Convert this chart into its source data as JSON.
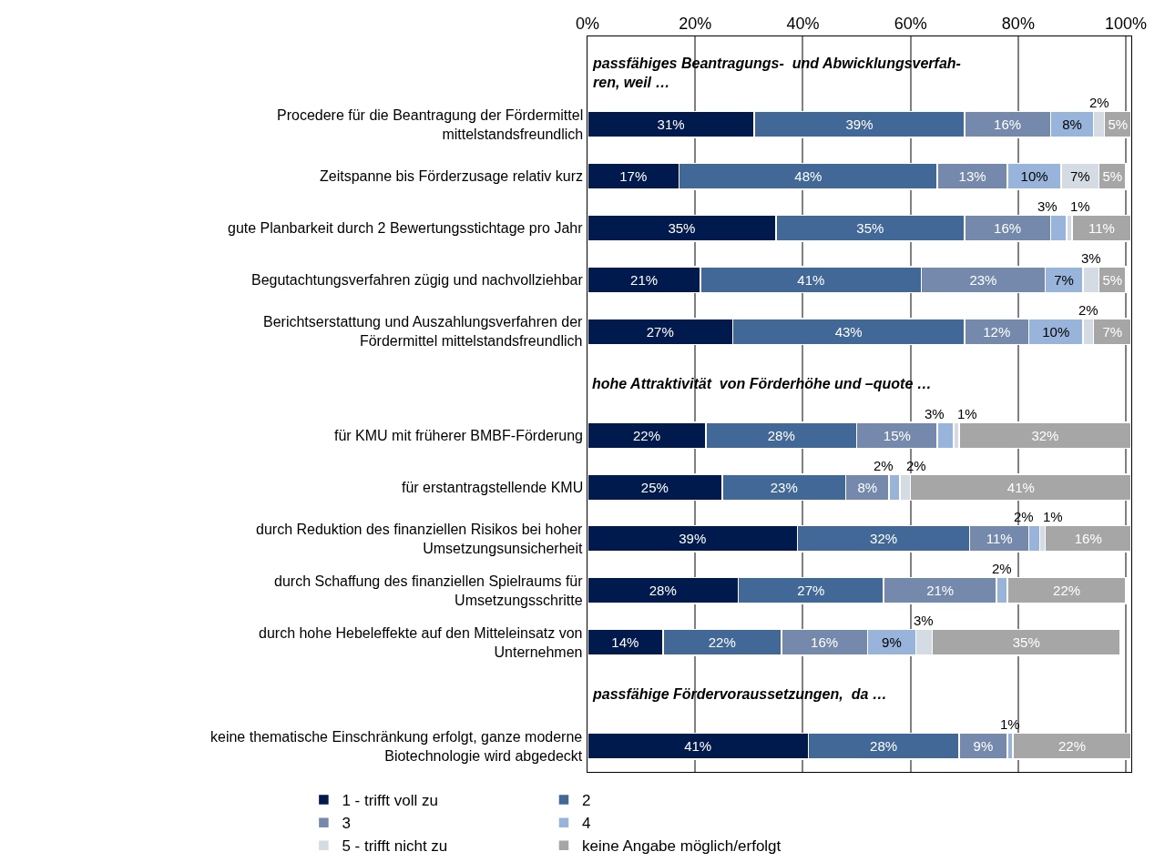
{
  "chart_data": {
    "type": "bar",
    "orientation": "horizontal",
    "stacked": true,
    "categories": [
      "passfähiges Beantragungs-  und Abwicklungsverfah-\nren, weil …",
      "Procedere für die Beantragung der Fördermittel\nmittelstandsfreundlich",
      "Zeitspanne bis Förderzusage relativ kurz",
      "gute Planbarkeit durch 2 Bewertungsstichtage pro Jahr",
      "Begutachtungsverfahren zügig und nachvollziehbar",
      "Berichtserstattung und Auszahlungsverfahren der\nFördermittel mittelstandsfreundlich",
      "hohe Attraktivität  von Förderhöhe und –quote …",
      "für KMU mit früherer BMBF-Förderung",
      "für erstantragstellende KMU",
      "durch Reduktion des finanziellen Risikos bei hoher\nUmsetzungsunsicherheit",
      "durch Schaffung des finanziellen Spielraums für\nUmsetzungsschritte",
      "durch hohe Hebeleffekte auf den Mitteleinsatz von\nUnternehmen",
      "passfähige Fördervoraussetzungen,  da …",
      "keine thematische Einschränkung erfolgt, ganze moderne\nBiotechnologie wird abgedeckt"
    ],
    "series": [
      {
        "name": "1 - trifft voll zu",
        "color": "#001a4d",
        "values": [
          null,
          31,
          17,
          35,
          21,
          27,
          null,
          22,
          25,
          39,
          28,
          14,
          null,
          41
        ],
        "value_labels": [
          null,
          "31%",
          "17%",
          "35%",
          "21%",
          "27%",
          null,
          "22%",
          "25%",
          "39%",
          "28%",
          "14%",
          null,
          "41%"
        ]
      },
      {
        "name": "2",
        "color": "#416897",
        "values": [
          null,
          39,
          48,
          35,
          41,
          43,
          null,
          28,
          23,
          32,
          27,
          22,
          null,
          28
        ],
        "value_labels": [
          null,
          "39%",
          "48%",
          "35%",
          "41%",
          "43%",
          null,
          "28%",
          "23%",
          "32%",
          "27%",
          "22%",
          null,
          "28%"
        ]
      },
      {
        "name": "3",
        "color": "#7489ab",
        "values": [
          null,
          16,
          13,
          16,
          23,
          12,
          null,
          15,
          8,
          11,
          21,
          16,
          null,
          9
        ],
        "value_labels": [
          null,
          "16%",
          "13%",
          "16%",
          "23%",
          "12%",
          null,
          "15%",
          "8%",
          "11%",
          "21%",
          "16%",
          null,
          "9%"
        ]
      },
      {
        "name": "4",
        "color": "#98b4da",
        "values": [
          null,
          8,
          10,
          3,
          7,
          10,
          null,
          3,
          2,
          2,
          2,
          9,
          null,
          1
        ],
        "value_labels": [
          null,
          "8%",
          "10%",
          "3%",
          "7%",
          "10%",
          null,
          "3%",
          "2%",
          "2%",
          "2%",
          "9%",
          null,
          "1%"
        ]
      },
      {
        "name": "5 - trifft nicht zu",
        "color": "#d4dbe3",
        "values": [
          null,
          2,
          7,
          1,
          3,
          2,
          null,
          1,
          2,
          1,
          null,
          3,
          null,
          null
        ],
        "value_labels": [
          null,
          "2%",
          "7%",
          "1%",
          "3%",
          "2%",
          null,
          "1%",
          "2%",
          "1%",
          null,
          "3%",
          null,
          null
        ]
      },
      {
        "name": "keine Angabe möglich/erfolgt",
        "color": "#a6a6a6",
        "values": [
          null,
          5,
          5,
          11,
          5,
          7,
          null,
          32,
          41,
          16,
          22,
          35,
          null,
          22
        ],
        "value_labels": [
          null,
          "5%",
          "5%",
          "11%",
          "5%",
          "7%",
          null,
          "32%",
          "41%",
          "16%",
          "22%",
          "35%",
          null,
          "22%"
        ]
      }
    ],
    "xlim": [
      0,
      101
    ],
    "xticks": [
      {
        "value": 0,
        "label": "0%"
      },
      {
        "value": 20,
        "label": "20%"
      },
      {
        "value": 40,
        "label": "40%"
      },
      {
        "value": 60,
        "label": "60%"
      },
      {
        "value": 80,
        "label": "80%"
      },
      {
        "value": 100,
        "label": "100%"
      }
    ],
    "grid": "x",
    "legend": "bottom"
  }
}
